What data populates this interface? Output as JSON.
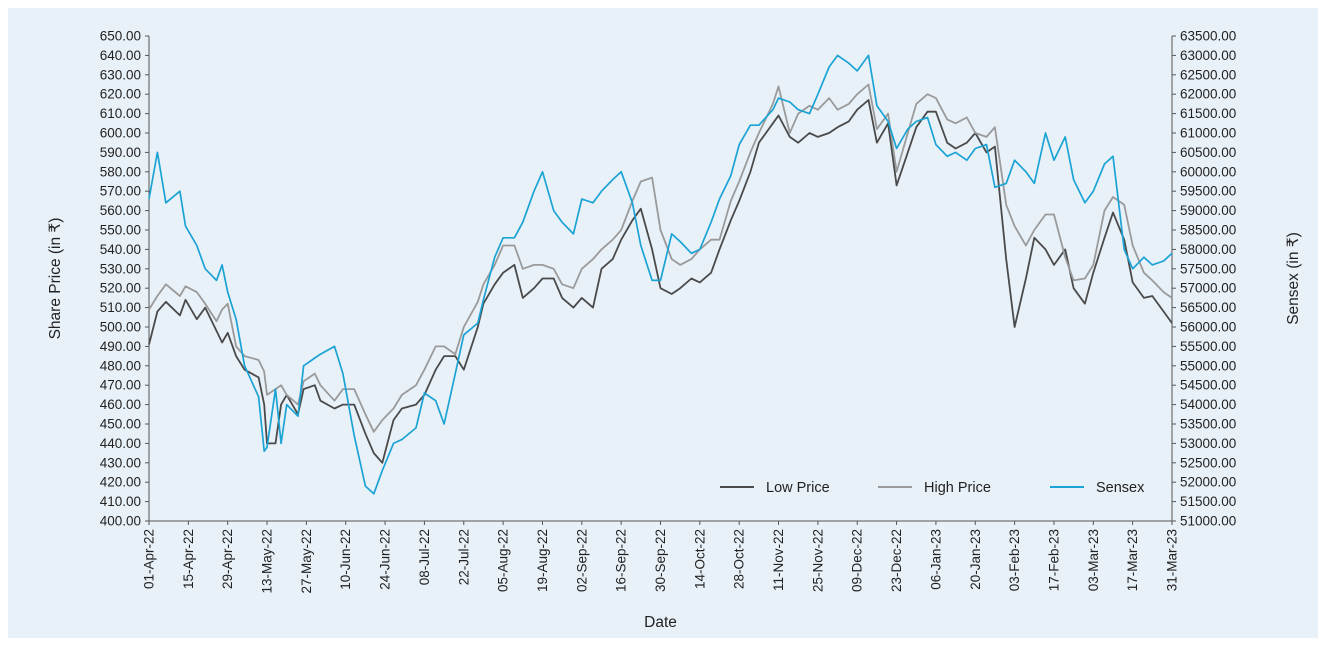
{
  "chart_data": {
    "type": "line",
    "xlabel": "Date",
    "ylabel_left": "Share Price (in ₹)",
    "ylabel_right": "Sensex (in ₹)",
    "x_tick_labels": [
      "01-Apr-22",
      "15-Apr-22",
      "29-Apr-22",
      "13-May-22",
      "27-May-22",
      "10-Jun-22",
      "24-Jun-22",
      "08-Jul-22",
      "22-Jul-22",
      "05-Aug-22",
      "19-Aug-22",
      "02-Sep-22",
      "16-Sep-22",
      "30-Sep-22",
      "14-Oct-22",
      "28-Oct-22",
      "11-Nov-22",
      "25-Nov-22",
      "09-Dec-22",
      "23-Dec-22",
      "06-Jan-23",
      "20-Jan-23",
      "03-Feb-23",
      "17-Feb-23",
      "03-Mar-23",
      "17-Mar-23",
      "31-Mar-23"
    ],
    "y_left": {
      "min": 400,
      "max": 650,
      "step": 10,
      "tick_format": "0.00"
    },
    "y_right": {
      "min": 51000,
      "max": 63500,
      "step": 500,
      "tick_format": "0.00"
    },
    "x_range": [
      "01-Apr-22",
      "31-Mar-23"
    ],
    "grid": false,
    "legend_position": "bottom-right",
    "series": [
      {
        "name": "Low Price",
        "axis": "left",
        "color": "#4a4a4a",
        "x": [
          "01-Apr-22",
          "04-Apr-22",
          "07-Apr-22",
          "12-Apr-22",
          "14-Apr-22",
          "18-Apr-22",
          "21-Apr-22",
          "25-Apr-22",
          "27-Apr-22",
          "29-Apr-22",
          "02-May-22",
          "05-May-22",
          "10-May-22",
          "12-May-22",
          "13-May-22",
          "16-May-22",
          "18-May-22",
          "20-May-22",
          "24-May-22",
          "26-May-22",
          "30-May-22",
          "01-Jun-22",
          "06-Jun-22",
          "09-Jun-22",
          "13-Jun-22",
          "17-Jun-22",
          "20-Jun-22",
          "23-Jun-22",
          "27-Jun-22",
          "30-Jun-22",
          "05-Jul-22",
          "08-Jul-22",
          "12-Jul-22",
          "15-Jul-22",
          "19-Jul-22",
          "22-Jul-22",
          "27-Jul-22",
          "29-Jul-22",
          "02-Aug-22",
          "05-Aug-22",
          "09-Aug-22",
          "12-Aug-22",
          "16-Aug-22",
          "19-Aug-22",
          "23-Aug-22",
          "26-Aug-22",
          "30-Aug-22",
          "02-Sep-22",
          "06-Sep-22",
          "09-Sep-22",
          "13-Sep-22",
          "16-Sep-22",
          "20-Sep-22",
          "23-Sep-22",
          "27-Sep-22",
          "30-Sep-22",
          "04-Oct-22",
          "07-Oct-22",
          "11-Oct-22",
          "14-Oct-22",
          "18-Oct-22",
          "21-Oct-22",
          "25-Oct-22",
          "28-Oct-22",
          "01-Nov-22",
          "04-Nov-22",
          "09-Nov-22",
          "11-Nov-22",
          "15-Nov-22",
          "18-Nov-22",
          "22-Nov-22",
          "25-Nov-22",
          "29-Nov-22",
          "02-Dec-22",
          "06-Dec-22",
          "09-Dec-22",
          "13-Dec-22",
          "16-Dec-22",
          "20-Dec-22",
          "23-Dec-22",
          "27-Dec-22",
          "30-Dec-22",
          "03-Jan-23",
          "06-Jan-23",
          "10-Jan-23",
          "13-Jan-23",
          "17-Jan-23",
          "20-Jan-23",
          "24-Jan-23",
          "27-Jan-23",
          "31-Jan-23",
          "03-Feb-23",
          "07-Feb-23",
          "10-Feb-23",
          "14-Feb-23",
          "17-Feb-23",
          "21-Feb-23",
          "24-Feb-23",
          "28-Feb-23",
          "03-Mar-23",
          "07-Mar-23",
          "10-Mar-23",
          "14-Mar-23",
          "17-Mar-23",
          "21-Mar-23",
          "24-Mar-23",
          "28-Mar-23",
          "31-Mar-23"
        ],
        "y": [
          491,
          508,
          513,
          506,
          514,
          504,
          510,
          498,
          492,
          497,
          485,
          478,
          474,
          460,
          440,
          440,
          460,
          465,
          455,
          468,
          470,
          462,
          458,
          460,
          460,
          445,
          435,
          430,
          452,
          458,
          460,
          465,
          478,
          485,
          485,
          478,
          500,
          512,
          522,
          528,
          532,
          515,
          520,
          525,
          525,
          515,
          510,
          515,
          510,
          530,
          535,
          545,
          555,
          561,
          540,
          520,
          517,
          520,
          525,
          523,
          528,
          540,
          555,
          565,
          580,
          595,
          605,
          609,
          598,
          595,
          600,
          598,
          600,
          603,
          606,
          612,
          617,
          595,
          605,
          573,
          590,
          603,
          611,
          611,
          595,
          592,
          595,
          600,
          590,
          593,
          535,
          500,
          525,
          546,
          540,
          532,
          540,
          520,
          512,
          528,
          546,
          559,
          545,
          523,
          515,
          516,
          508,
          502
        ]
      },
      {
        "name": "High Price",
        "axis": "left",
        "color": "#9a9a9a",
        "x": [
          "01-Apr-22",
          "04-Apr-22",
          "07-Apr-22",
          "12-Apr-22",
          "14-Apr-22",
          "18-Apr-22",
          "21-Apr-22",
          "25-Apr-22",
          "27-Apr-22",
          "29-Apr-22",
          "02-May-22",
          "05-May-22",
          "10-May-22",
          "12-May-22",
          "13-May-22",
          "16-May-22",
          "18-May-22",
          "20-May-22",
          "24-May-22",
          "26-May-22",
          "30-May-22",
          "01-Jun-22",
          "06-Jun-22",
          "09-Jun-22",
          "13-Jun-22",
          "17-Jun-22",
          "20-Jun-22",
          "23-Jun-22",
          "27-Jun-22",
          "30-Jun-22",
          "05-Jul-22",
          "08-Jul-22",
          "12-Jul-22",
          "15-Jul-22",
          "19-Jul-22",
          "22-Jul-22",
          "27-Jul-22",
          "29-Jul-22",
          "02-Aug-22",
          "05-Aug-22",
          "09-Aug-22",
          "12-Aug-22",
          "16-Aug-22",
          "19-Aug-22",
          "23-Aug-22",
          "26-Aug-22",
          "30-Aug-22",
          "02-Sep-22",
          "06-Sep-22",
          "09-Sep-22",
          "13-Sep-22",
          "16-Sep-22",
          "20-Sep-22",
          "23-Sep-22",
          "27-Sep-22",
          "30-Sep-22",
          "04-Oct-22",
          "07-Oct-22",
          "11-Oct-22",
          "14-Oct-22",
          "18-Oct-22",
          "21-Oct-22",
          "25-Oct-22",
          "28-Oct-22",
          "01-Nov-22",
          "04-Nov-22",
          "09-Nov-22",
          "11-Nov-22",
          "15-Nov-22",
          "18-Nov-22",
          "22-Nov-22",
          "25-Nov-22",
          "29-Nov-22",
          "02-Dec-22",
          "06-Dec-22",
          "09-Dec-22",
          "13-Dec-22",
          "16-Dec-22",
          "20-Dec-22",
          "23-Dec-22",
          "27-Dec-22",
          "30-Dec-22",
          "03-Jan-23",
          "06-Jan-23",
          "10-Jan-23",
          "13-Jan-23",
          "17-Jan-23",
          "20-Jan-23",
          "24-Jan-23",
          "27-Jan-23",
          "31-Jan-23",
          "03-Feb-23",
          "07-Feb-23",
          "10-Feb-23",
          "14-Feb-23",
          "17-Feb-23",
          "21-Feb-23",
          "24-Feb-23",
          "28-Feb-23",
          "03-Mar-23",
          "07-Mar-23",
          "10-Mar-23",
          "14-Mar-23",
          "17-Mar-23",
          "21-Mar-23",
          "24-Mar-23",
          "28-Mar-23",
          "31-Mar-23"
        ],
        "y": [
          509,
          516,
          522,
          516,
          521,
          518,
          512,
          503,
          509,
          512,
          490,
          485,
          483,
          477,
          465,
          468,
          470,
          465,
          460,
          472,
          476,
          470,
          462,
          468,
          468,
          455,
          446,
          452,
          458,
          465,
          470,
          478,
          490,
          490,
          486,
          500,
          513,
          522,
          532,
          542,
          542,
          530,
          532,
          532,
          530,
          522,
          520,
          530,
          535,
          540,
          545,
          550,
          565,
          575,
          577,
          550,
          535,
          532,
          535,
          540,
          545,
          545,
          565,
          575,
          590,
          600,
          615,
          624,
          600,
          610,
          614,
          612,
          618,
          612,
          615,
          620,
          625,
          602,
          610,
          580,
          600,
          615,
          620,
          618,
          607,
          605,
          608,
          600,
          598,
          603,
          563,
          552,
          542,
          550,
          558,
          558,
          536,
          524,
          525,
          532,
          560,
          567,
          563,
          542,
          528,
          524,
          518,
          515
        ]
      },
      {
        "name": "Sensex",
        "axis": "right",
        "color": "#1aa3d4",
        "x": [
          "01-Apr-22",
          "04-Apr-22",
          "07-Apr-22",
          "12-Apr-22",
          "14-Apr-22",
          "18-Apr-22",
          "21-Apr-22",
          "25-Apr-22",
          "27-Apr-22",
          "29-Apr-22",
          "02-May-22",
          "05-May-22",
          "10-May-22",
          "12-May-22",
          "13-May-22",
          "16-May-22",
          "18-May-22",
          "20-May-22",
          "24-May-22",
          "26-May-22",
          "30-May-22",
          "01-Jun-22",
          "06-Jun-22",
          "09-Jun-22",
          "13-Jun-22",
          "17-Jun-22",
          "20-Jun-22",
          "23-Jun-22",
          "27-Jun-22",
          "30-Jun-22",
          "05-Jul-22",
          "08-Jul-22",
          "12-Jul-22",
          "15-Jul-22",
          "19-Jul-22",
          "22-Jul-22",
          "27-Jul-22",
          "29-Jul-22",
          "02-Aug-22",
          "05-Aug-22",
          "09-Aug-22",
          "12-Aug-22",
          "16-Aug-22",
          "19-Aug-22",
          "23-Aug-22",
          "26-Aug-22",
          "30-Aug-22",
          "02-Sep-22",
          "06-Sep-22",
          "09-Sep-22",
          "13-Sep-22",
          "16-Sep-22",
          "20-Sep-22",
          "23-Sep-22",
          "27-Sep-22",
          "30-Sep-22",
          "04-Oct-22",
          "07-Oct-22",
          "11-Oct-22",
          "14-Oct-22",
          "18-Oct-22",
          "21-Oct-22",
          "25-Oct-22",
          "28-Oct-22",
          "01-Nov-22",
          "04-Nov-22",
          "09-Nov-22",
          "11-Nov-22",
          "15-Nov-22",
          "18-Nov-22",
          "22-Nov-22",
          "25-Nov-22",
          "29-Nov-22",
          "02-Dec-22",
          "06-Dec-22",
          "09-Dec-22",
          "13-Dec-22",
          "16-Dec-22",
          "20-Dec-22",
          "23-Dec-22",
          "27-Dec-22",
          "30-Dec-22",
          "03-Jan-23",
          "06-Jan-23",
          "10-Jan-23",
          "13-Jan-23",
          "17-Jan-23",
          "20-Jan-23",
          "24-Jan-23",
          "27-Jan-23",
          "31-Jan-23",
          "03-Feb-23",
          "07-Feb-23",
          "10-Feb-23",
          "14-Feb-23",
          "17-Feb-23",
          "21-Feb-23",
          "24-Feb-23",
          "28-Feb-23",
          "03-Mar-23",
          "07-Mar-23",
          "10-Mar-23",
          "14-Mar-23",
          "17-Mar-23",
          "21-Mar-23",
          "24-Mar-23",
          "28-Mar-23",
          "31-Mar-23"
        ],
        "y": [
          59300,
          60500,
          59200,
          59500,
          58600,
          58100,
          57500,
          57200,
          57600,
          56900,
          56200,
          55000,
          54200,
          52800,
          52900,
          54400,
          53000,
          54000,
          53700,
          55000,
          55200,
          55300,
          55500,
          54800,
          53200,
          51900,
          51700,
          52300,
          53000,
          53100,
          53400,
          54300,
          54100,
          53500,
          54800,
          55800,
          56100,
          56700,
          57800,
          58300,
          58300,
          58700,
          59500,
          60000,
          59000,
          58700,
          58400,
          59300,
          59200,
          59500,
          59800,
          60000,
          59200,
          58100,
          57200,
          57200,
          58400,
          58200,
          57900,
          58000,
          58700,
          59300,
          59900,
          60700,
          61200,
          61200,
          61600,
          61900,
          61800,
          61600,
          61500,
          62000,
          62700,
          63000,
          62800,
          62600,
          63000,
          61700,
          61300,
          60600,
          61100,
          61300,
          61400,
          60700,
          60400,
          60500,
          60300,
          60600,
          60700,
          59600,
          59700,
          60300,
          60000,
          59700,
          61000,
          60300,
          60900,
          59800,
          59200,
          59500,
          60200,
          60400,
          58000,
          57500,
          57800,
          57600,
          57700,
          57900
        ]
      }
    ]
  },
  "legend": {
    "items": [
      {
        "label": "Low Price",
        "color": "#4a4a4a"
      },
      {
        "label": "High Price",
        "color": "#9a9a9a"
      },
      {
        "label": "Sensex",
        "color": "#1aa3d4"
      }
    ]
  }
}
